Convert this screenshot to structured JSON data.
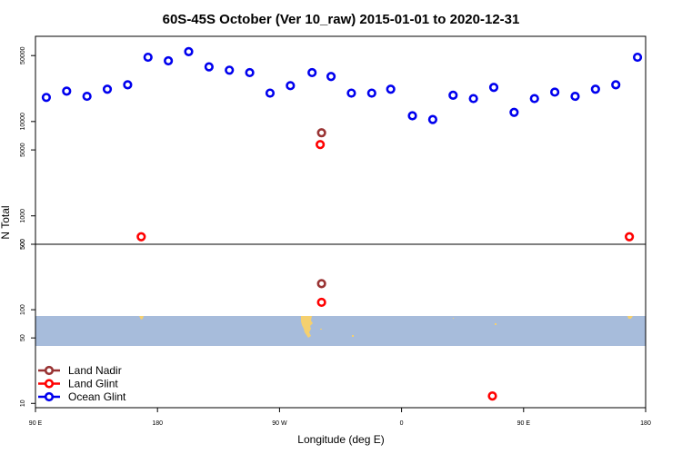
{
  "chart_data": {
    "type": "scatter",
    "title": "60S-45S October (Ver 10_raw)   2015-01-01 to 2020-12-31",
    "xlabel": "Longitude (deg E)",
    "ylabel": "N Total",
    "x_ticks": [
      {
        "value": 90,
        "label": "90 E"
      },
      {
        "value": 180,
        "label": "180"
      },
      {
        "value": 270,
        "label": "90 W"
      },
      {
        "value": 360,
        "label": "0"
      },
      {
        "value": 450,
        "label": "90 E"
      },
      {
        "value": 540,
        "label": "180"
      }
    ],
    "xlim": [
      90,
      540
    ],
    "panels": [
      {
        "name": "top",
        "scale": "log",
        "ylim": [
          500,
          80000
        ],
        "y_ticks": [
          {
            "value": 500,
            "label": "500"
          },
          {
            "value": 1000,
            "label": "1000"
          },
          {
            "value": 5000,
            "label": "5000"
          },
          {
            "value": 10000,
            "label": "10000"
          },
          {
            "value": 50000,
            "label": "50000"
          }
        ]
      },
      {
        "name": "bottom",
        "scale": "log",
        "ylim": [
          9,
          500
        ],
        "y_ticks": [
          {
            "value": 10,
            "label": "10"
          },
          {
            "value": 50,
            "label": "50"
          },
          {
            "value": 100,
            "label": "100"
          },
          {
            "value": 500,
            "label": "500"
          }
        ]
      }
    ],
    "series": [
      {
        "name": "Land Nadir",
        "color": "#993333",
        "points": [
          {
            "x": 301,
            "y": 7600
          },
          {
            "x": 301,
            "y": 190
          }
        ]
      },
      {
        "name": "Land Glint",
        "color": "#ff0000",
        "points": [
          {
            "x": 168,
            "y": 600
          },
          {
            "x": 300,
            "y": 5700
          },
          {
            "x": 301,
            "y": 120
          },
          {
            "x": 427,
            "y": 12
          },
          {
            "x": 528,
            "y": 600
          }
        ]
      },
      {
        "name": "Ocean Glint",
        "color": "#0000ee",
        "points": [
          {
            "x": 98,
            "y": 18000
          },
          {
            "x": 113,
            "y": 21000
          },
          {
            "x": 128,
            "y": 18500
          },
          {
            "x": 143,
            "y": 22000
          },
          {
            "x": 158,
            "y": 24500
          },
          {
            "x": 173,
            "y": 48000
          },
          {
            "x": 188,
            "y": 44000
          },
          {
            "x": 203,
            "y": 55000
          },
          {
            "x": 218,
            "y": 38000
          },
          {
            "x": 233,
            "y": 35000
          },
          {
            "x": 248,
            "y": 33000
          },
          {
            "x": 263,
            "y": 20000
          },
          {
            "x": 278,
            "y": 24000
          },
          {
            "x": 294,
            "y": 33000
          },
          {
            "x": 308,
            "y": 30000
          },
          {
            "x": 323,
            "y": 20000
          },
          {
            "x": 338,
            "y": 20000
          },
          {
            "x": 352,
            "y": 22000
          },
          {
            "x": 368,
            "y": 11500
          },
          {
            "x": 383,
            "y": 10500
          },
          {
            "x": 398,
            "y": 19000
          },
          {
            "x": 413,
            "y": 17500
          },
          {
            "x": 428,
            "y": 23000
          },
          {
            "x": 443,
            "y": 12500
          },
          {
            "x": 458,
            "y": 17500
          },
          {
            "x": 473,
            "y": 20500
          },
          {
            "x": 488,
            "y": 18500
          },
          {
            "x": 503,
            "y": 22000
          },
          {
            "x": 518,
            "y": 24500
          },
          {
            "x": 534,
            "y": 48000
          }
        ]
      }
    ],
    "legend_position": "bottom-left",
    "map_band": {
      "ocean_color": "#a7bcdb",
      "land_color": "#f5d06f"
    }
  }
}
